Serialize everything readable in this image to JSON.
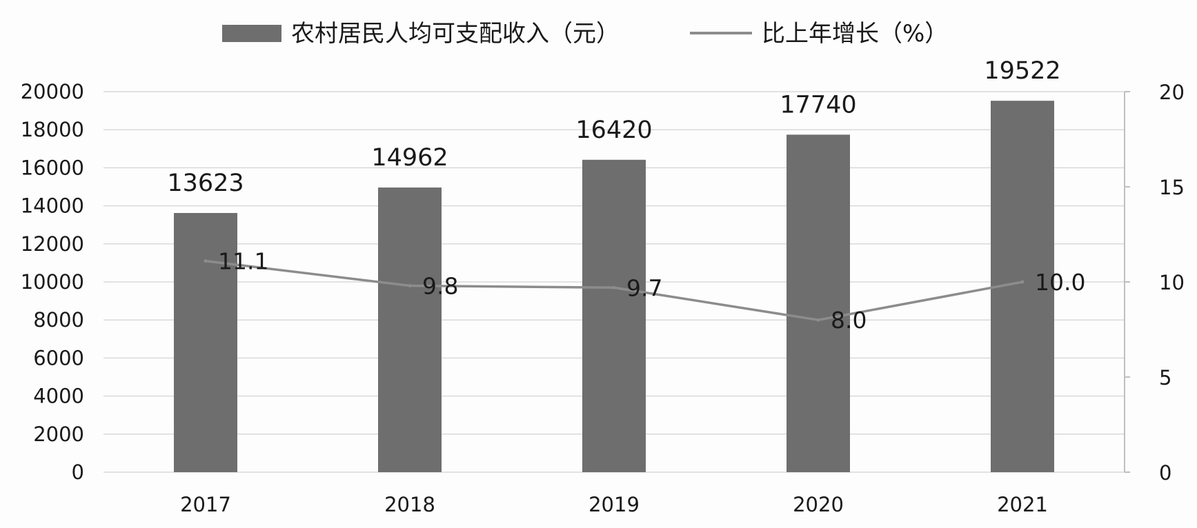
{
  "chart_data": {
    "type": "bar",
    "categories": [
      "2017",
      "2018",
      "2019",
      "2020",
      "2021"
    ],
    "series": [
      {
        "name": "农村居民人均可支配收入（元）",
        "type": "bar",
        "axis": "left",
        "values": [
          13623,
          14962,
          16420,
          17740,
          19522
        ],
        "labels": [
          "13623",
          "14962",
          "16420",
          "17740",
          "19522"
        ]
      },
      {
        "name": "比上年增长（%）",
        "type": "line",
        "axis": "right",
        "values": [
          11.1,
          9.8,
          9.7,
          8.0,
          10.0
        ],
        "labels": [
          "11.1",
          "9.8",
          "9.7",
          "8.0",
          "10.0"
        ]
      }
    ],
    "y_left": {
      "min": 0,
      "max": 20000,
      "ticks": [
        "0",
        "2000",
        "4000",
        "6000",
        "8000",
        "10000",
        "12000",
        "14000",
        "16000",
        "18000",
        "20000"
      ]
    },
    "y_right": {
      "min": 0,
      "max": 20,
      "ticks": [
        "0",
        "5",
        "10",
        "15",
        "20"
      ]
    },
    "grid": true,
    "legend_position": "top-center",
    "colors": {
      "bar": "#6e6e6e",
      "line": "#8c8c8c",
      "grid": "#d9d9d9",
      "axis": "#bfbfbf",
      "text": "#1a1a1a"
    }
  }
}
